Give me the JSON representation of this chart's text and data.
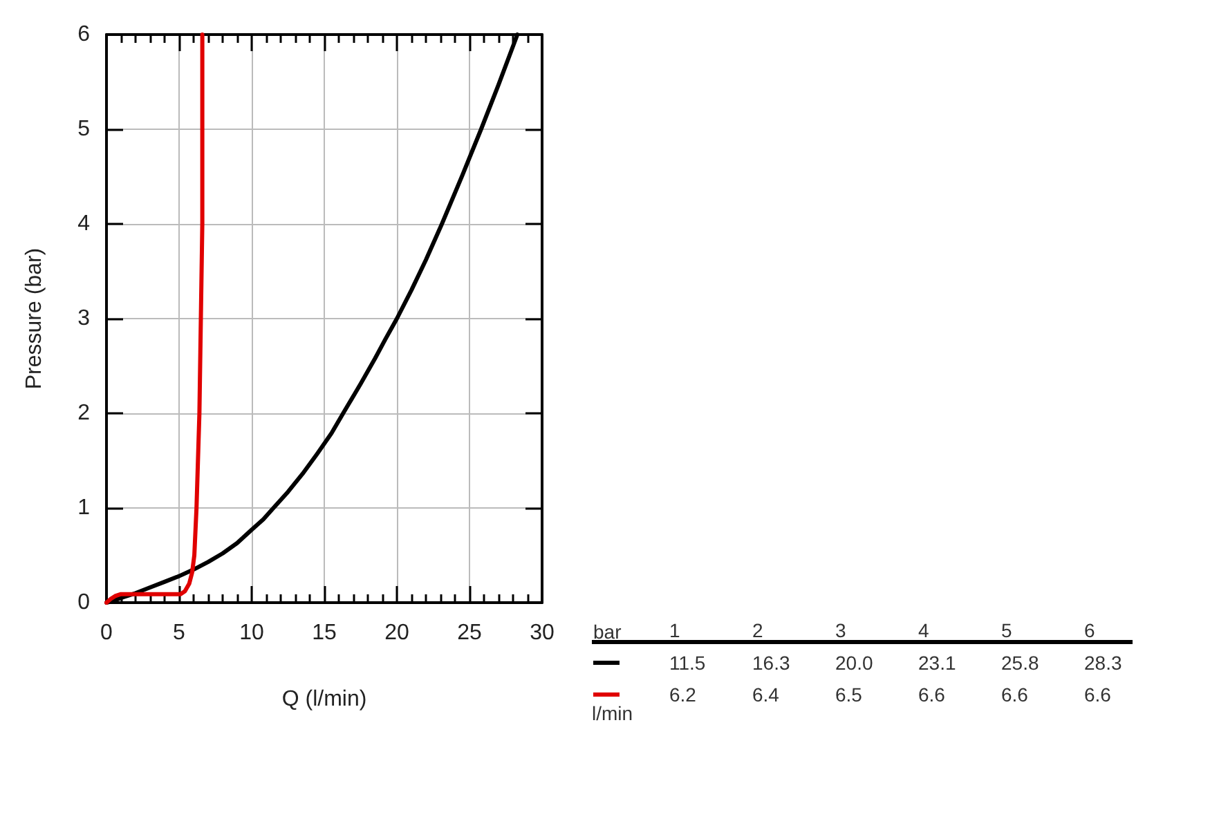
{
  "chart_data": [
    {
      "type": "line",
      "xlabel": "Q (l/min)",
      "ylabel": "Pressure (bar)",
      "xlim": [
        0,
        30
      ],
      "ylim": [
        0,
        6
      ],
      "xticks": [
        0,
        5,
        10,
        15,
        20,
        25,
        30
      ],
      "yticks": [
        0,
        1,
        2,
        3,
        4,
        5,
        6
      ],
      "grid": true,
      "marker": "none",
      "line_style": "solid",
      "series": [
        {
          "color": "#000000",
          "x": [
            0,
            0.5,
            1,
            2,
            3,
            4,
            5,
            6,
            7,
            8,
            9,
            10,
            10.8,
            11.5,
            12.5,
            13.5,
            14.5,
            15.5,
            16.3,
            17.5,
            18.5,
            19.2,
            20,
            21,
            22,
            23.1,
            24.5,
            25.8,
            27,
            28.3
          ],
          "values": [
            0,
            0.02,
            0.05,
            0.1,
            0.16,
            0.22,
            0.28,
            0.35,
            0.43,
            0.52,
            0.63,
            0.77,
            0.88,
            1,
            1.17,
            1.36,
            1.57,
            1.79,
            2,
            2.31,
            2.58,
            2.78,
            3,
            3.3,
            3.62,
            4,
            4.51,
            5,
            5.47,
            6
          ]
        },
        {
          "color": "#e00000",
          "x": [
            0,
            0.3,
            0.6,
            1,
            2,
            3,
            4,
            5.1,
            5.4,
            5.7,
            5.9,
            6.05,
            6.2,
            6.4,
            6.5,
            6.6,
            6.6,
            6.6
          ],
          "values": [
            0,
            0.04,
            0.07,
            0.09,
            0.09,
            0.09,
            0.09,
            0.09,
            0.12,
            0.2,
            0.32,
            0.5,
            1,
            2,
            3,
            4,
            5,
            6
          ]
        }
      ]
    },
    {
      "type": "heatmap",
      "xlabel": "bar",
      "categories": [
        "1",
        "2",
        "3",
        "4",
        "5",
        "6"
      ],
      "y_categories": [
        null,
        null
      ],
      "cells": [
        [
          11.5,
          16.3,
          20.0,
          23.1,
          25.8,
          28.3
        ],
        [
          6.2,
          6.4,
          6.5,
          6.6,
          6.6,
          6.6
        ]
      ],
      "cell_labels": [
        [
          "11.5",
          "16.3",
          "20.0",
          "23.1",
          "25.8",
          "28.3"
        ],
        [
          "6.2",
          "6.4",
          "6.5",
          "6.6",
          "6.6",
          "6.6"
        ]
      ],
      "annotations": [
        "l/min"
      ]
    }
  ]
}
